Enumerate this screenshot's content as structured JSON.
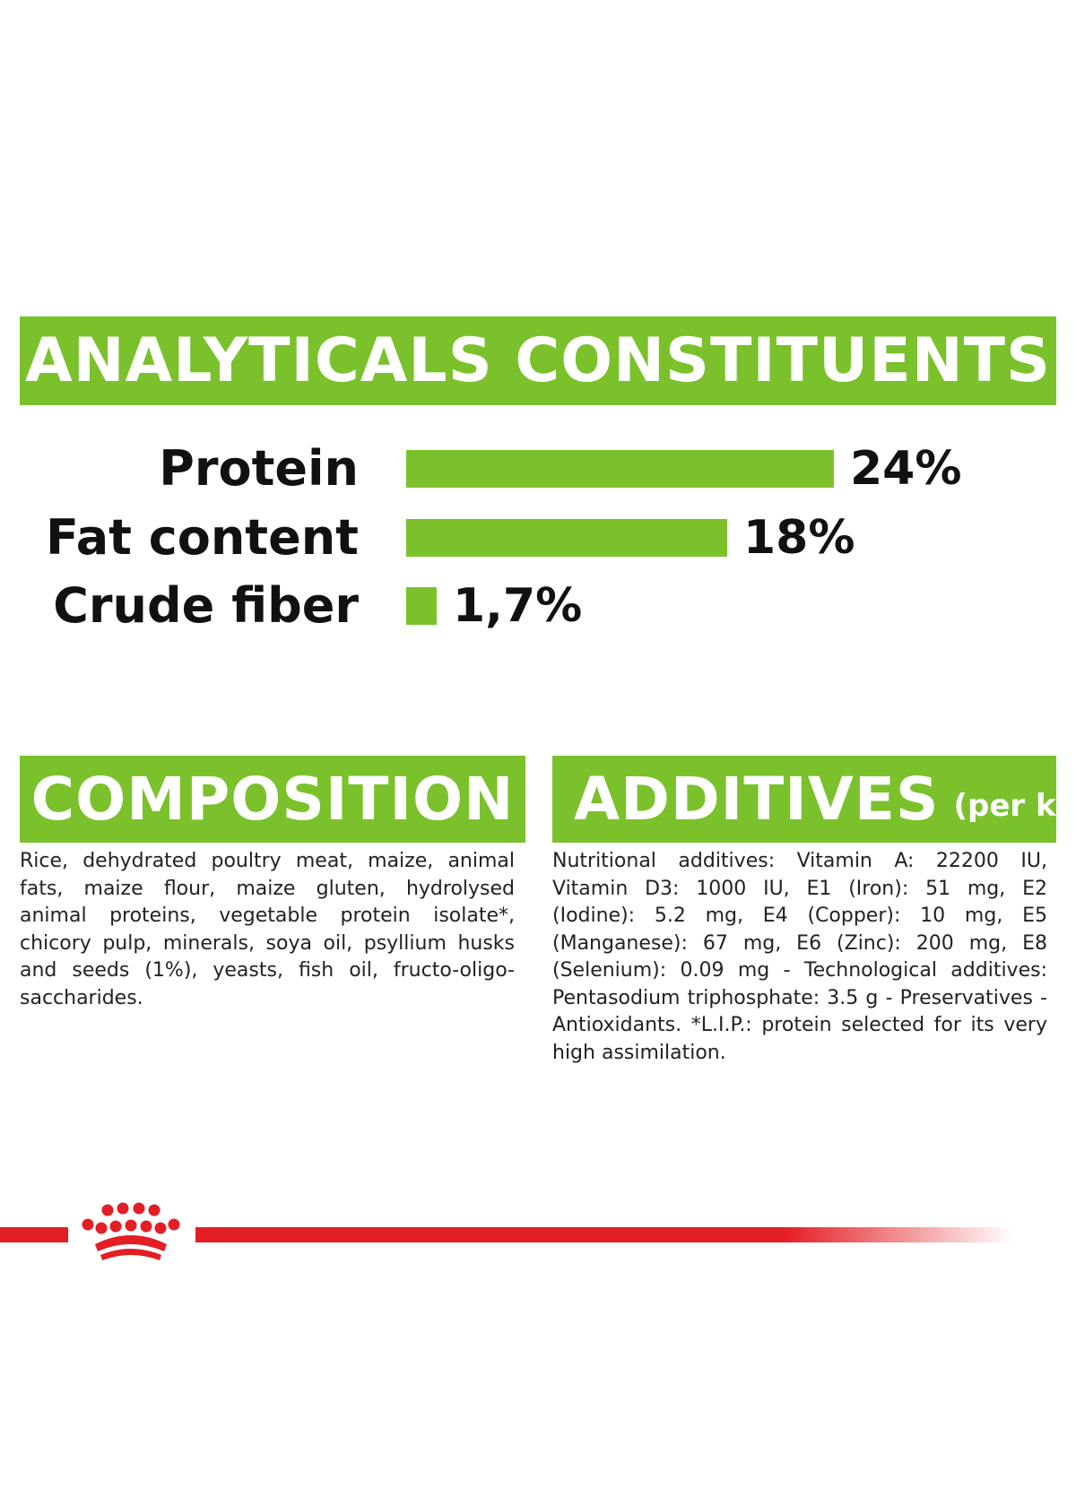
{
  "colors": {
    "green": "#7ac12c",
    "red": "#e31e24",
    "text": "#111111"
  },
  "analytics": {
    "title": "ANALYTICALS CONSTITUENTS",
    "scale_max_percent": 24,
    "items": [
      {
        "label": "Protein",
        "value_text": "24%",
        "percent": 24
      },
      {
        "label": "Fat content",
        "value_text": "18%",
        "percent": 18
      },
      {
        "label": "Crude fiber",
        "value_text": "1,7%",
        "percent": 1.7
      }
    ]
  },
  "composition": {
    "title": "COMPOSITION",
    "text": "Rice, dehydrated poultry meat, maize, animal fats, maize flour, maize gluten, hydrolysed animal proteins, vegetable protein isolate*, chicory pulp, minerals, soya oil, psyllium husks and seeds (1%), yeasts, fish oil, fructo-oligo- saccharides."
  },
  "additives": {
    "title": "ADDITIVES",
    "subtitle": "(per kg)",
    "text": "Nutritional additives: Vitamin A: 22200 IU, Vitamin D3: 1000 IU, E1 (Iron): 51 mg, E2 (Iodine): 5.2 mg, E4 (Copper): 10 mg, E5 (Manganese): 67 mg, E6 (Zinc): 200 mg, E8 (Selenium): 0.09 mg - Technological additives: Pentasodium triphosphate: 3.5 g - Preservatives - Antioxidants. *L.I.P.: protein selected for its very high assimilation."
  },
  "footer": {
    "logo_icon": "royal-canin-crown-icon"
  }
}
